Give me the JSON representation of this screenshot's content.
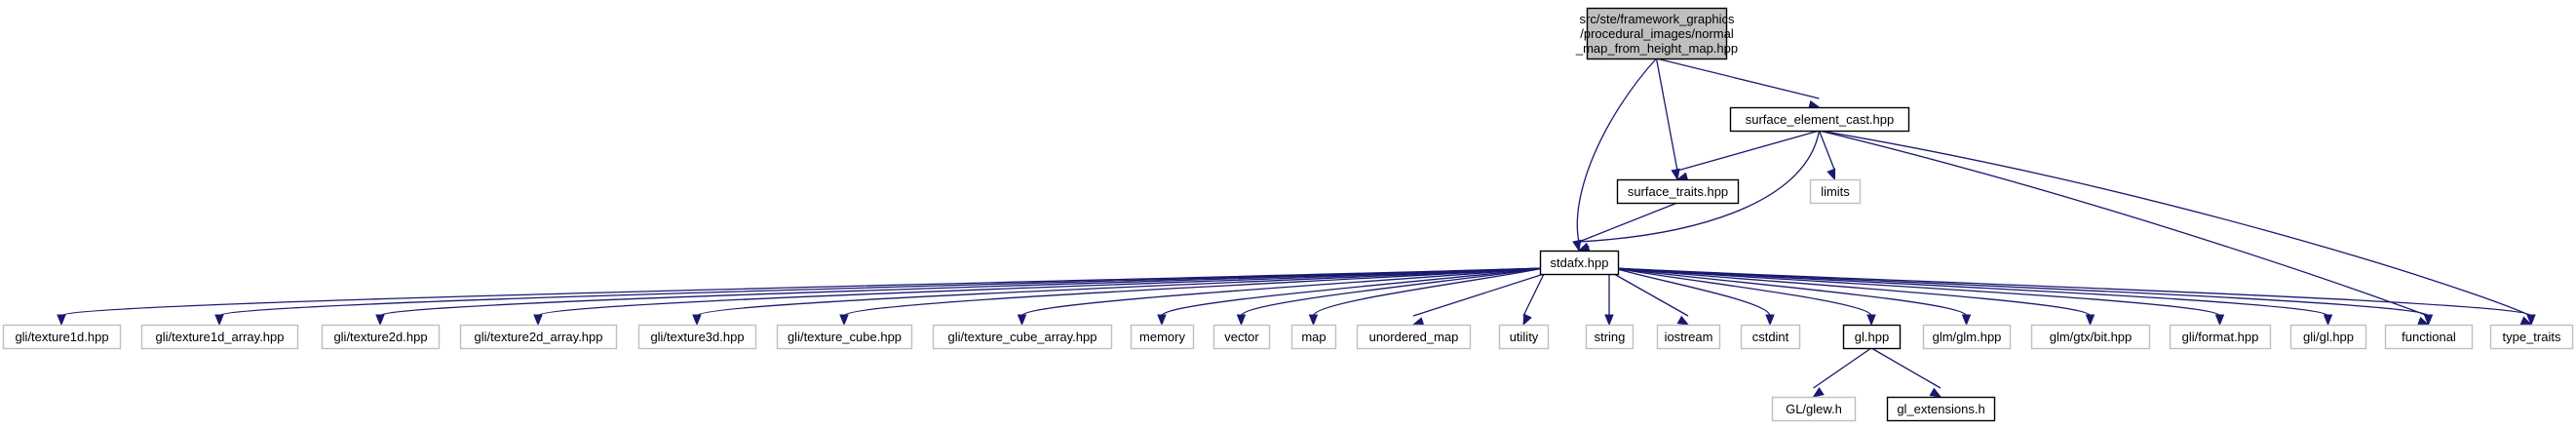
{
  "colors": {
    "edge": "#191970",
    "root_fill": "#bfbfbf",
    "border_solid": "#000000",
    "border_external": "#bfbfbf"
  },
  "nodes": [
    {
      "id": "root",
      "lines": [
        "src/ste/framework_graphics",
        "/procedural_images/normal",
        "_map_from_height_map.hpp"
      ],
      "kind": "root"
    },
    {
      "id": "surface_element_cast",
      "lines": [
        "surface_element_cast.hpp"
      ],
      "kind": "file"
    },
    {
      "id": "surface_traits",
      "lines": [
        "surface_traits.hpp"
      ],
      "kind": "file"
    },
    {
      "id": "limits",
      "lines": [
        "limits"
      ],
      "kind": "external"
    },
    {
      "id": "stdafx",
      "lines": [
        "stdafx.hpp"
      ],
      "kind": "file"
    },
    {
      "id": "texture1d",
      "lines": [
        "gli/texture1d.hpp"
      ],
      "kind": "external"
    },
    {
      "id": "texture1d_array",
      "lines": [
        "gli/texture1d_array.hpp"
      ],
      "kind": "external"
    },
    {
      "id": "texture2d",
      "lines": [
        "gli/texture2d.hpp"
      ],
      "kind": "external"
    },
    {
      "id": "texture2d_array",
      "lines": [
        "gli/texture2d_array.hpp"
      ],
      "kind": "external"
    },
    {
      "id": "texture3d",
      "lines": [
        "gli/texture3d.hpp"
      ],
      "kind": "external"
    },
    {
      "id": "texture_cube",
      "lines": [
        "gli/texture_cube.hpp"
      ],
      "kind": "external"
    },
    {
      "id": "texture_cube_array",
      "lines": [
        "gli/texture_cube_array.hpp"
      ],
      "kind": "external"
    },
    {
      "id": "memory",
      "lines": [
        "memory"
      ],
      "kind": "external"
    },
    {
      "id": "vector",
      "lines": [
        "vector"
      ],
      "kind": "external"
    },
    {
      "id": "map",
      "lines": [
        "map"
      ],
      "kind": "external"
    },
    {
      "id": "unordered_map",
      "lines": [
        "unordered_map"
      ],
      "kind": "external"
    },
    {
      "id": "utility",
      "lines": [
        "utility"
      ],
      "kind": "external"
    },
    {
      "id": "string",
      "lines": [
        "string"
      ],
      "kind": "external"
    },
    {
      "id": "iostream",
      "lines": [
        "iostream"
      ],
      "kind": "external"
    },
    {
      "id": "cstdint",
      "lines": [
        "cstdint"
      ],
      "kind": "external"
    },
    {
      "id": "gl_hpp",
      "lines": [
        "gl.hpp"
      ],
      "kind": "file"
    },
    {
      "id": "glm",
      "lines": [
        "glm/glm.hpp"
      ],
      "kind": "external"
    },
    {
      "id": "glm_bit",
      "lines": [
        "glm/gtx/bit.hpp"
      ],
      "kind": "external"
    },
    {
      "id": "gli_format",
      "lines": [
        "gli/format.hpp"
      ],
      "kind": "external"
    },
    {
      "id": "gli_gl",
      "lines": [
        "gli/gl.hpp"
      ],
      "kind": "external"
    },
    {
      "id": "functional",
      "lines": [
        "functional"
      ],
      "kind": "external"
    },
    {
      "id": "type_traits",
      "lines": [
        "type_traits"
      ],
      "kind": "external"
    },
    {
      "id": "glew",
      "lines": [
        "GL/glew.h"
      ],
      "kind": "external"
    },
    {
      "id": "gl_extensions",
      "lines": [
        "gl_extensions.h"
      ],
      "kind": "file"
    }
  ],
  "edges": [
    [
      "root",
      "surface_element_cast"
    ],
    [
      "root",
      "surface_traits"
    ],
    [
      "root",
      "stdafx"
    ],
    [
      "surface_element_cast",
      "surface_traits"
    ],
    [
      "surface_element_cast",
      "limits"
    ],
    [
      "surface_element_cast",
      "stdafx"
    ],
    [
      "surface_element_cast",
      "functional"
    ],
    [
      "surface_element_cast",
      "type_traits"
    ],
    [
      "surface_traits",
      "stdafx"
    ],
    [
      "stdafx",
      "texture1d"
    ],
    [
      "stdafx",
      "texture1d_array"
    ],
    [
      "stdafx",
      "texture2d"
    ],
    [
      "stdafx",
      "texture2d_array"
    ],
    [
      "stdafx",
      "texture3d"
    ],
    [
      "stdafx",
      "texture_cube"
    ],
    [
      "stdafx",
      "texture_cube_array"
    ],
    [
      "stdafx",
      "memory"
    ],
    [
      "stdafx",
      "vector"
    ],
    [
      "stdafx",
      "map"
    ],
    [
      "stdafx",
      "unordered_map"
    ],
    [
      "stdafx",
      "utility"
    ],
    [
      "stdafx",
      "string"
    ],
    [
      "stdafx",
      "iostream"
    ],
    [
      "stdafx",
      "cstdint"
    ],
    [
      "stdafx",
      "gl_hpp"
    ],
    [
      "stdafx",
      "glm"
    ],
    [
      "stdafx",
      "glm_bit"
    ],
    [
      "stdafx",
      "gli_format"
    ],
    [
      "stdafx",
      "gli_gl"
    ],
    [
      "stdafx",
      "functional"
    ],
    [
      "stdafx",
      "type_traits"
    ],
    [
      "gl_hpp",
      "glew"
    ],
    [
      "gl_hpp",
      "gl_extensions"
    ]
  ]
}
